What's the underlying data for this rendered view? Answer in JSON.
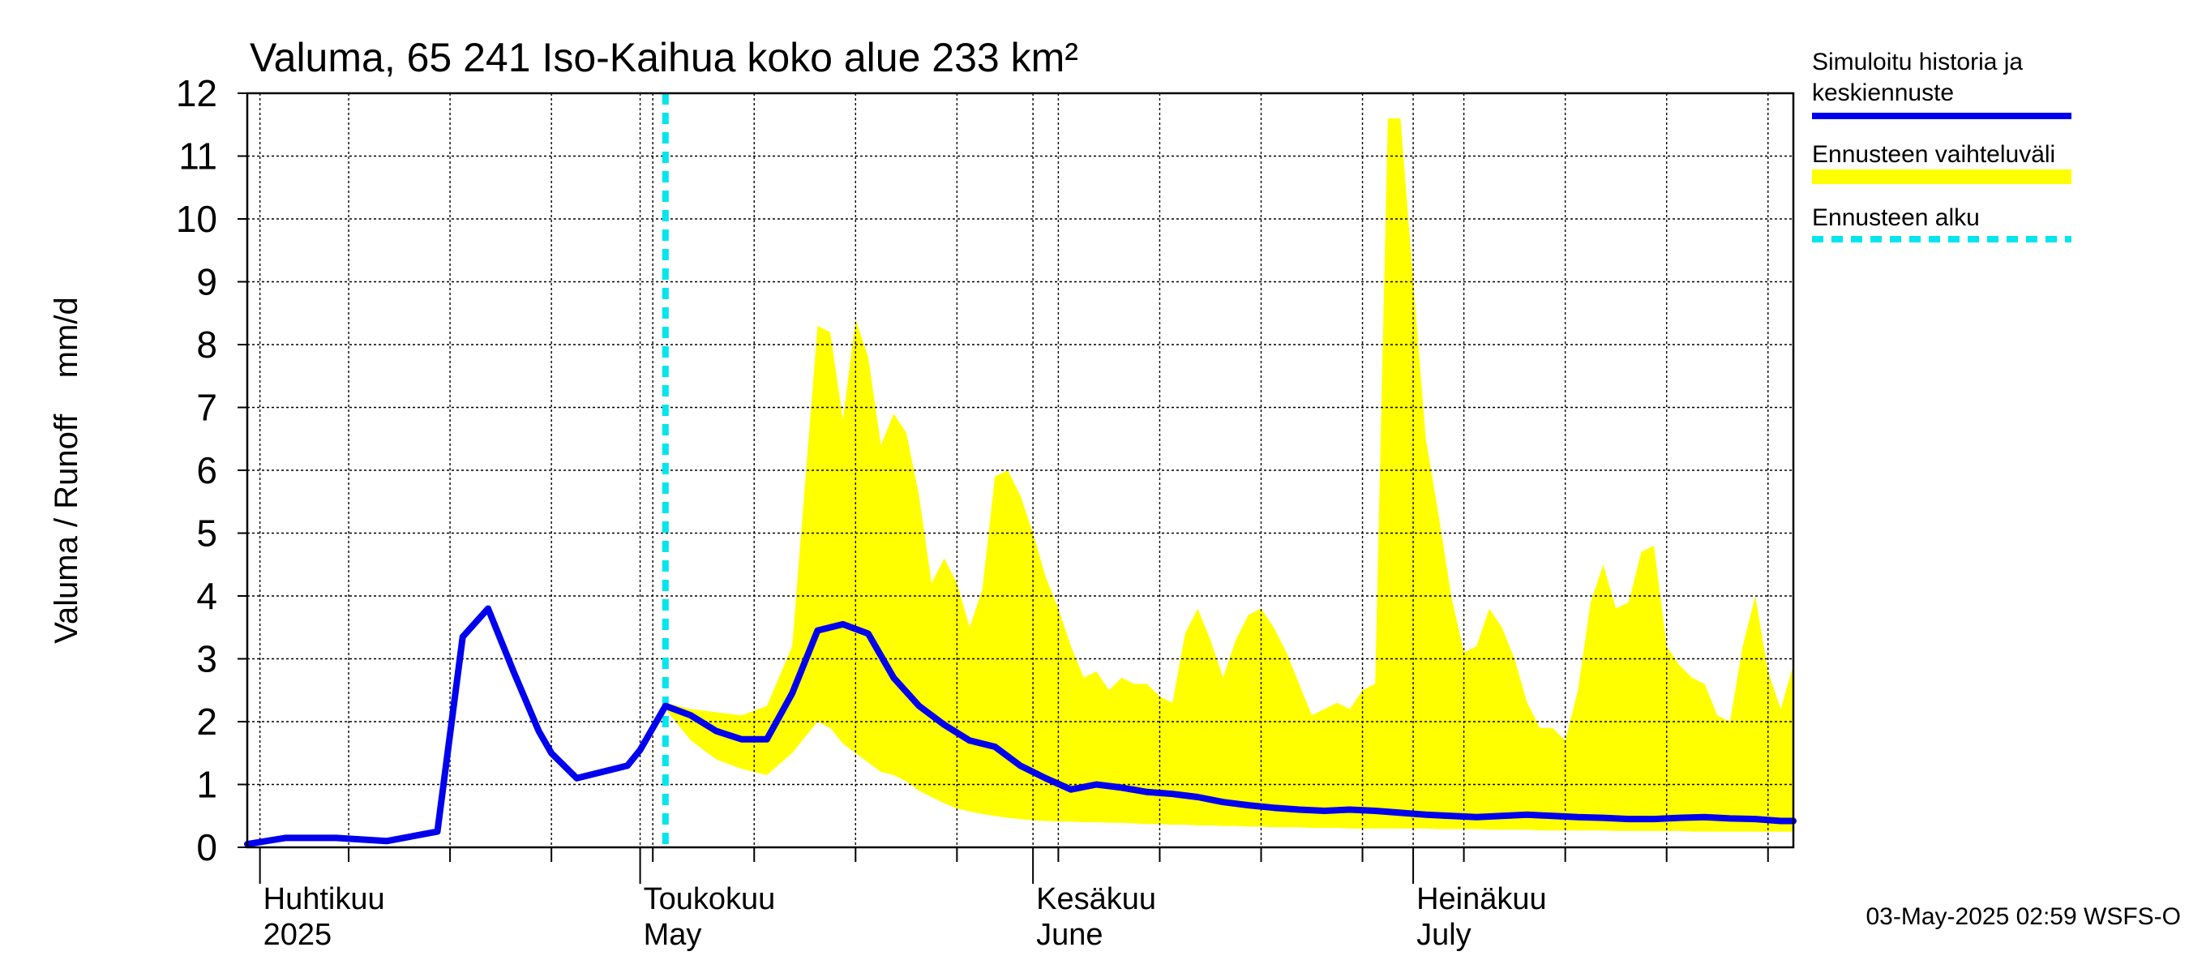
{
  "chart_data": {
    "type": "line",
    "title": "Valuma, 65 241 Iso-Kaihua koko alue 233 km²",
    "ylabel": "Valuma / Runoff    mm/d",
    "ylim": [
      0,
      12
    ],
    "yticks": [
      0,
      1,
      2,
      3,
      4,
      5,
      6,
      7,
      8,
      9,
      10,
      11,
      12
    ],
    "xlim": [
      "2025-03-31",
      "2025-07-31"
    ],
    "grid": true,
    "x_tick_labels": [
      {
        "date": "2025-04-01",
        "line1": "Huhtikuu",
        "line2": "2025"
      },
      {
        "date": "2025-05-01",
        "line1": "Toukokuu",
        "line2": "May"
      },
      {
        "date": "2025-06-01",
        "line1": "Kesäkuu",
        "line2": "June"
      },
      {
        "date": "2025-07-01",
        "line1": "Heinäkuu",
        "line2": "July"
      }
    ],
    "forecast_start": "2025-05-03",
    "legend": {
      "position": "right",
      "entries": [
        {
          "label_line1": "Simuloitu historia ja",
          "label_line2": "keskiennuste",
          "color": "#0000ee",
          "style": "solid"
        },
        {
          "label_line1": "Ennusteen vaihteluväli",
          "label_line2": "",
          "color": "#ffff00",
          "style": "band"
        },
        {
          "label_line1": "Ennusteen alku",
          "label_line2": "",
          "color": "#00e5ee",
          "style": "dashed"
        }
      ]
    },
    "colors": {
      "series": "#0000ee",
      "band": "#ffff00",
      "forecast_line": "#00e5ee"
    },
    "series": [
      {
        "name": "Simuloitu historia ja keskiennuste",
        "x": [
          "2025-03-31",
          "2025-04-03",
          "2025-04-07",
          "2025-04-11",
          "2025-04-15",
          "2025-04-17",
          "2025-04-19",
          "2025-04-21",
          "2025-04-23",
          "2025-04-24",
          "2025-04-26",
          "2025-04-28",
          "2025-04-30",
          "2025-05-01",
          "2025-05-03",
          "2025-05-05",
          "2025-05-07",
          "2025-05-09",
          "2025-05-11",
          "2025-05-13",
          "2025-05-15",
          "2025-05-17",
          "2025-05-19",
          "2025-05-21",
          "2025-05-23",
          "2025-05-25",
          "2025-05-27",
          "2025-05-29",
          "2025-05-31",
          "2025-06-02",
          "2025-06-04",
          "2025-06-06",
          "2025-06-08",
          "2025-06-10",
          "2025-06-12",
          "2025-06-14",
          "2025-06-16",
          "2025-06-18",
          "2025-06-20",
          "2025-06-22",
          "2025-06-24",
          "2025-06-26",
          "2025-06-28",
          "2025-06-30",
          "2025-07-02",
          "2025-07-04",
          "2025-07-06",
          "2025-07-08",
          "2025-07-10",
          "2025-07-12",
          "2025-07-14",
          "2025-07-16",
          "2025-07-18",
          "2025-07-20",
          "2025-07-22",
          "2025-07-24",
          "2025-07-26",
          "2025-07-28",
          "2025-07-30",
          "2025-07-31"
        ],
        "values": [
          0.05,
          0.15,
          0.15,
          0.1,
          0.25,
          3.35,
          3.8,
          2.8,
          1.85,
          1.5,
          1.1,
          1.2,
          1.3,
          1.55,
          2.25,
          2.1,
          1.85,
          1.72,
          1.72,
          2.45,
          3.45,
          3.55,
          3.4,
          2.7,
          2.25,
          1.95,
          1.7,
          1.6,
          1.3,
          1.1,
          0.92,
          1.0,
          0.95,
          0.88,
          0.85,
          0.8,
          0.72,
          0.67,
          0.63,
          0.6,
          0.58,
          0.6,
          0.58,
          0.55,
          0.52,
          0.5,
          0.48,
          0.5,
          0.52,
          0.5,
          0.48,
          0.47,
          0.45,
          0.45,
          0.47,
          0.48,
          0.46,
          0.45,
          0.42,
          0.42
        ]
      }
    ],
    "band": {
      "name": "Ennusteen vaihteluväli",
      "x": [
        "2025-05-03",
        "2025-05-05",
        "2025-05-07",
        "2025-05-09",
        "2025-05-11",
        "2025-05-13",
        "2025-05-15",
        "2025-05-16",
        "2025-05-17",
        "2025-05-18",
        "2025-05-19",
        "2025-05-20",
        "2025-05-21",
        "2025-05-22",
        "2025-05-23",
        "2025-05-24",
        "2025-05-25",
        "2025-05-26",
        "2025-05-27",
        "2025-05-28",
        "2025-05-29",
        "2025-05-30",
        "2025-05-31",
        "2025-06-01",
        "2025-06-02",
        "2025-06-03",
        "2025-06-04",
        "2025-06-05",
        "2025-06-06",
        "2025-06-07",
        "2025-06-08",
        "2025-06-09",
        "2025-06-10",
        "2025-06-11",
        "2025-06-12",
        "2025-06-13",
        "2025-06-14",
        "2025-06-15",
        "2025-06-16",
        "2025-06-17",
        "2025-06-18",
        "2025-06-19",
        "2025-06-20",
        "2025-06-21",
        "2025-06-22",
        "2025-06-23",
        "2025-06-24",
        "2025-06-25",
        "2025-06-26",
        "2025-06-27",
        "2025-06-28",
        "2025-06-29",
        "2025-06-30",
        "2025-07-01",
        "2025-07-02",
        "2025-07-03",
        "2025-07-04",
        "2025-07-05",
        "2025-07-06",
        "2025-07-07",
        "2025-07-08",
        "2025-07-09",
        "2025-07-10",
        "2025-07-11",
        "2025-07-12",
        "2025-07-13",
        "2025-07-14",
        "2025-07-15",
        "2025-07-16",
        "2025-07-17",
        "2025-07-18",
        "2025-07-19",
        "2025-07-20",
        "2025-07-21",
        "2025-07-22",
        "2025-07-23",
        "2025-07-24",
        "2025-07-25",
        "2025-07-26",
        "2025-07-27",
        "2025-07-28",
        "2025-07-29",
        "2025-07-30",
        "2025-07-31"
      ],
      "upper": [
        2.3,
        2.2,
        2.15,
        2.1,
        2.25,
        3.2,
        8.3,
        8.2,
        6.8,
        8.4,
        7.8,
        6.4,
        6.9,
        6.6,
        5.6,
        4.2,
        4.6,
        4.2,
        3.5,
        4.1,
        5.9,
        6.0,
        5.6,
        5.0,
        4.3,
        3.8,
        3.2,
        2.7,
        2.8,
        2.5,
        2.7,
        2.6,
        2.6,
        2.4,
        2.3,
        3.4,
        3.8,
        3.3,
        2.7,
        3.3,
        3.7,
        3.8,
        3.5,
        3.1,
        2.6,
        2.1,
        2.2,
        2.3,
        2.2,
        2.5,
        2.6,
        11.6,
        11.6,
        9.0,
        6.5,
        5.3,
        4.0,
        3.1,
        3.2,
        3.8,
        3.5,
        3.0,
        2.3,
        1.9,
        1.9,
        1.7,
        2.5,
        3.9,
        4.5,
        3.8,
        3.9,
        4.7,
        4.8,
        3.2,
        2.9,
        2.7,
        2.6,
        2.1,
        2.0,
        3.2,
        4.0,
        2.8,
        2.2,
        2.9
      ],
      "lower": [
        2.2,
        1.7,
        1.4,
        1.25,
        1.15,
        1.5,
        2.0,
        1.9,
        1.65,
        1.5,
        1.35,
        1.2,
        1.15,
        1.05,
        0.9,
        0.8,
        0.7,
        0.62,
        0.57,
        0.53,
        0.5,
        0.47,
        0.45,
        0.43,
        0.42,
        0.41,
        0.41,
        0.4,
        0.4,
        0.39,
        0.39,
        0.38,
        0.37,
        0.37,
        0.36,
        0.36,
        0.35,
        0.35,
        0.34,
        0.34,
        0.33,
        0.33,
        0.32,
        0.32,
        0.32,
        0.31,
        0.31,
        0.31,
        0.3,
        0.3,
        0.3,
        0.3,
        0.3,
        0.3,
        0.3,
        0.29,
        0.29,
        0.29,
        0.29,
        0.28,
        0.28,
        0.28,
        0.28,
        0.27,
        0.27,
        0.27,
        0.27,
        0.27,
        0.27,
        0.26,
        0.26,
        0.26,
        0.26,
        0.26,
        0.26,
        0.25,
        0.25,
        0.25,
        0.25,
        0.25,
        0.25,
        0.25,
        0.25,
        0.25
      ]
    }
  },
  "footer": "03-May-2025 02:59 WSFS-O"
}
